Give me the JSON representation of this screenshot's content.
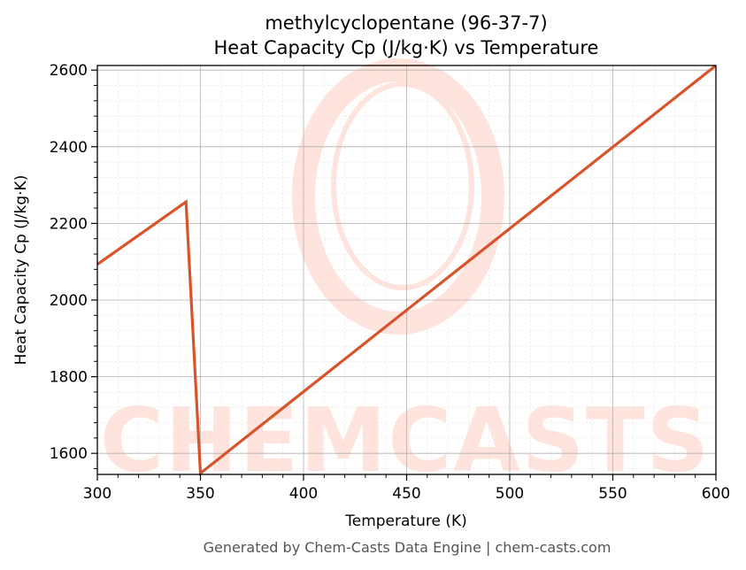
{
  "chart_data": {
    "type": "line",
    "title_lines": [
      "methylcyclopentane (96-37-7)",
      "Heat Capacity Cp (J/kg·K) vs Temperature"
    ],
    "xlabel": "Temperature (K)",
    "ylabel": "Heat Capacity Cp (J/kg·K)",
    "xlim": [
      300,
      600
    ],
    "ylim": [
      1545,
      2612
    ],
    "xticks": [
      300,
      350,
      400,
      450,
      500,
      550,
      600
    ],
    "yticks": [
      1600,
      1800,
      2000,
      2200,
      2400,
      2600
    ],
    "grid": true,
    "series": [
      {
        "color": "#d9532a",
        "x": [
          300,
          343,
          350,
          600
        ],
        "y": [
          2093,
          2256,
          1548,
          2612
        ]
      }
    ]
  },
  "watermark": {
    "text": "CHEMCASTS"
  },
  "footer": "Generated by Chem-Casts Data Engine | chem-casts.com"
}
